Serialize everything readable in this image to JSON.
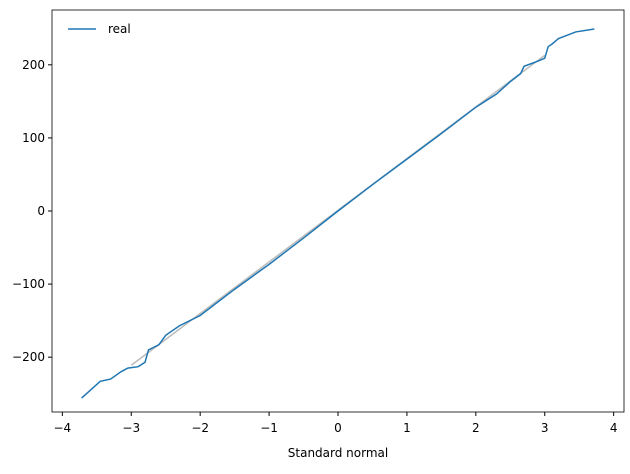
{
  "chart_data": {
    "type": "line",
    "x_label": "Standard normal",
    "x": [
      -3.72,
      -3.45,
      -3.3,
      -3.15,
      -3.05,
      -2.9,
      -2.8,
      -2.75,
      -2.6,
      -2.5,
      -2.3,
      -2.0,
      -1.5,
      -1.0,
      -0.5,
      0,
      0.5,
      1.0,
      1.5,
      2.0,
      2.3,
      2.5,
      2.65,
      2.7,
      2.9,
      3.0,
      3.05,
      3.1,
      3.2,
      3.45,
      3.72
    ],
    "series": [
      {
        "name": "real",
        "color": "#1f77b4",
        "values": [
          -256,
          -233,
          -230,
          -220,
          -215,
          -213,
          -207,
          -190,
          -183,
          -170,
          -157,
          -143,
          -107,
          -73,
          -37,
          0,
          36,
          71,
          106,
          142,
          160,
          177,
          188,
          198,
          205,
          209,
          225,
          228,
          236,
          245,
          249
        ]
      }
    ],
    "reference_line": {
      "x": [
        -3,
        3
      ],
      "values": [
        -211,
        213
      ],
      "color": "#bbbbbb"
    },
    "xlim": [
      -4.15,
      4.15
    ],
    "ylim": [
      -275,
      275
    ],
    "xticks": [
      {
        "value": -4,
        "label": "−4"
      },
      {
        "value": -3,
        "label": "−3"
      },
      {
        "value": -2,
        "label": "−2"
      },
      {
        "value": -1,
        "label": "−1"
      },
      0,
      1,
      2,
      3,
      4
    ],
    "yticks": [
      {
        "value": -200,
        "label": "−200"
      },
      {
        "value": -100,
        "label": "−100"
      },
      0,
      100,
      200
    ],
    "legend": "upper left",
    "grid": false
  }
}
